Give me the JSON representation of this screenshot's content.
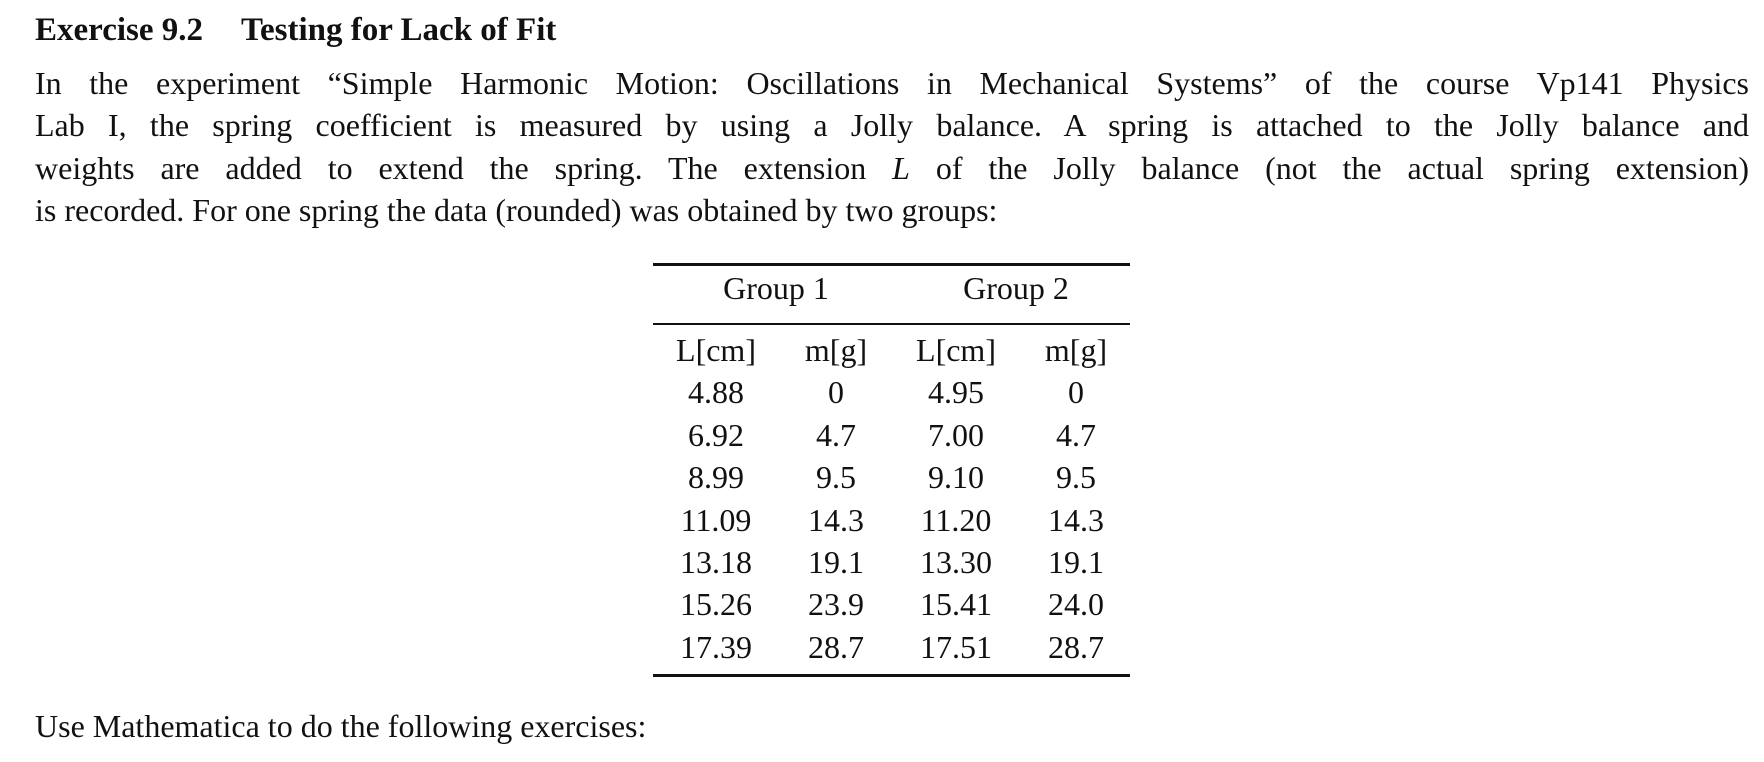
{
  "header": {
    "number": "Exercise 9.2",
    "title": "Testing for Lack of Fit"
  },
  "paragraph": {
    "lines": [
      "In the experiment “Simple Harmonic Motion: Oscillations in Mechanical Systems” of the course Vp141 Physics",
      "Lab I, the spring coefficient is measured by using a Jolly balance. A spring is attached to the Jolly balance and",
      {
        "before": "weights are added to extend the spring. The extension ",
        "variable": "L",
        "after": " of the Jolly balance (not the actual spring extension)"
      },
      "is recorded. For one spring the data (rounded) was obtained by two groups:"
    ]
  },
  "table": {
    "groups": [
      "Group 1",
      "Group 2"
    ],
    "columns": [
      "L[cm]",
      "m[g]",
      "L[cm]",
      "m[g]"
    ],
    "rows": [
      [
        "4.88",
        "0",
        "4.95",
        "0"
      ],
      [
        "6.92",
        "4.7",
        "7.00",
        "4.7"
      ],
      [
        "8.99",
        "9.5",
        "9.10",
        "9.5"
      ],
      [
        "11.09",
        "14.3",
        "11.20",
        "14.3"
      ],
      [
        "13.18",
        "19.1",
        "13.30",
        "19.1"
      ],
      [
        "15.26",
        "23.9",
        "15.41",
        "24.0"
      ],
      [
        "17.39",
        "28.7",
        "17.51",
        "28.7"
      ]
    ]
  },
  "footer": "Use Mathematica to do the following exercises:"
}
